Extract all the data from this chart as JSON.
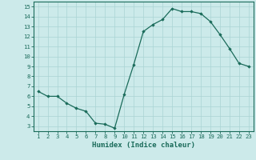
{
  "x_data": [
    1,
    2,
    3,
    4,
    5,
    6,
    7,
    8,
    9,
    10,
    11,
    12,
    13,
    14,
    15,
    16,
    17,
    18,
    19,
    20,
    21,
    22,
    23
  ],
  "y_data": [
    6.5,
    6.0,
    6.0,
    5.3,
    4.8,
    4.5,
    3.3,
    3.2,
    2.8,
    6.2,
    9.2,
    12.5,
    13.2,
    13.7,
    14.8,
    14.5,
    14.5,
    14.3,
    13.5,
    12.2,
    10.8,
    9.3,
    9.0
  ],
  "xlim": [
    0.5,
    23.5
  ],
  "ylim": [
    2.5,
    15.5
  ],
  "yticks": [
    3,
    4,
    5,
    6,
    7,
    8,
    9,
    10,
    11,
    12,
    13,
    14,
    15
  ],
  "xticks": [
    1,
    2,
    3,
    4,
    5,
    6,
    7,
    8,
    9,
    10,
    11,
    12,
    13,
    14,
    15,
    16,
    17,
    18,
    19,
    20,
    21,
    22,
    23
  ],
  "xlabel": "Humidex (Indice chaleur)",
  "line_color": "#1a6b5a",
  "marker": "D",
  "marker_size": 1.8,
  "bg_color": "#cceaea",
  "grid_color": "#aad4d4",
  "tick_fontsize": 5.2,
  "xlabel_fontsize": 6.5,
  "linewidth": 0.9
}
